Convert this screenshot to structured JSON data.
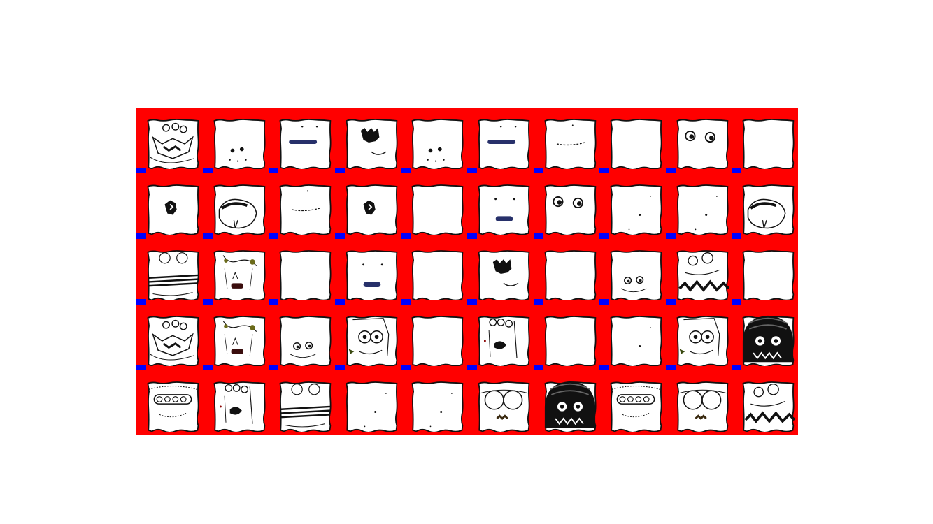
{
  "sheet": {
    "rows": 5,
    "columns": 10,
    "colors": {
      "frame": "#ff0000",
      "corner_marker": "#0000ff",
      "tile_background": "#ffffff",
      "ink": "#111111",
      "accent": "#27306a"
    }
  },
  "tiles": [
    [
      "cluster-face",
      "dots-face",
      "bar-mouth",
      "bat-mouth",
      "dots-face",
      "bar-mouth",
      "dash-mouth",
      "blank",
      "eyes-pair",
      "blank"
    ],
    [
      "ghost-mouth",
      "tongue-mouth",
      "dash-mouth",
      "ghost-mouth",
      "blank",
      "eyes-bar",
      "eyes-pair",
      "speck",
      "speck",
      "tongue-mouth"
    ],
    [
      "plank-face",
      "crease-face",
      "blank",
      "eyes-bar",
      "blank",
      "bat-mouth",
      "blank",
      "eyes-pair-small",
      "zigzag-face",
      "blank"
    ],
    [
      "cluster-face",
      "crease-face",
      "eyes-pair-small",
      "goggle-face",
      "blank",
      "ogre-face",
      "blank",
      "speck",
      "goggle-face",
      "hair-face"
    ],
    [
      "teeth-face",
      "ogre-face",
      "plank-face",
      "speck",
      "speck",
      "glasses-face",
      "hair-face",
      "teeth-face",
      "glasses-face",
      "zigzag-face"
    ]
  ]
}
